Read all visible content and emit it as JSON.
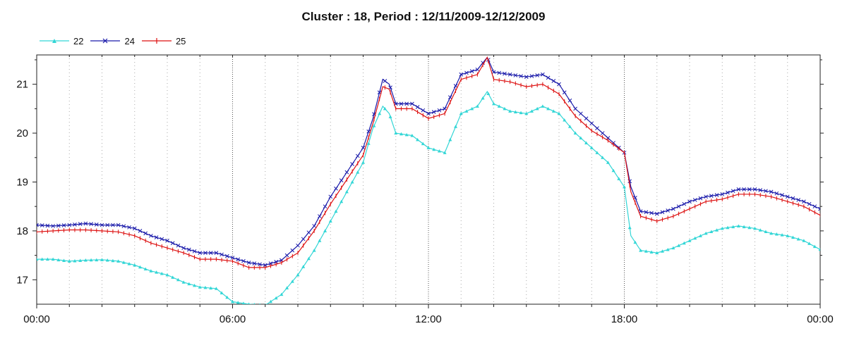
{
  "chart_data": {
    "type": "line",
    "title": "Cluster : 18, Period : 12/11/2009-12/12/2009",
    "xlabel": "",
    "ylabel": "",
    "x_range_hours": [
      0,
      24
    ],
    "x_tick_labels": [
      "00:00",
      "06:00",
      "12:00",
      "18:00",
      "00:00"
    ],
    "y_range": [
      16.5,
      21.6
    ],
    "y_ticks": [
      17,
      18,
      19,
      20,
      21
    ],
    "grid": "dotted vertical lines every hour; bolder dotted lines at 06:00, 12:00, 18:00",
    "legend_position": "top-left",
    "series": [
      {
        "name": "22",
        "color": "#33d6d6",
        "marker": "triangle",
        "points": [
          [
            0,
            17.42
          ],
          [
            0.5,
            17.42
          ],
          [
            1,
            17.38
          ],
          [
            1.5,
            17.4
          ],
          [
            2,
            17.41
          ],
          [
            2.5,
            17.38
          ],
          [
            3,
            17.3
          ],
          [
            3.5,
            17.18
          ],
          [
            4,
            17.1
          ],
          [
            4.5,
            16.95
          ],
          [
            5,
            16.85
          ],
          [
            5.5,
            16.82
          ],
          [
            6,
            16.55
          ],
          [
            6.5,
            16.5
          ],
          [
            7,
            16.48
          ],
          [
            7.5,
            16.7
          ],
          [
            8,
            17.1
          ],
          [
            8.5,
            17.6
          ],
          [
            9,
            18.2
          ],
          [
            9.5,
            18.8
          ],
          [
            10,
            19.4
          ],
          [
            10.3,
            20.1
          ],
          [
            10.6,
            20.55
          ],
          [
            10.8,
            20.4
          ],
          [
            11,
            20.0
          ],
          [
            11.5,
            19.95
          ],
          [
            12,
            19.7
          ],
          [
            12.5,
            19.6
          ],
          [
            13,
            20.4
          ],
          [
            13.5,
            20.55
          ],
          [
            13.8,
            20.85
          ],
          [
            14,
            20.6
          ],
          [
            14.5,
            20.45
          ],
          [
            15,
            20.4
          ],
          [
            15.5,
            20.55
          ],
          [
            16,
            20.4
          ],
          [
            16.5,
            20.0
          ],
          [
            17,
            19.7
          ],
          [
            17.5,
            19.4
          ],
          [
            18,
            18.9
          ],
          [
            18.2,
            17.9
          ],
          [
            18.5,
            17.6
          ],
          [
            19,
            17.55
          ],
          [
            19.5,
            17.65
          ],
          [
            20,
            17.8
          ],
          [
            20.5,
            17.95
          ],
          [
            21,
            18.05
          ],
          [
            21.5,
            18.1
          ],
          [
            22,
            18.05
          ],
          [
            22.5,
            17.95
          ],
          [
            23,
            17.9
          ],
          [
            23.5,
            17.8
          ],
          [
            24,
            17.62
          ]
        ]
      },
      {
        "name": "24",
        "color": "#1a1aaa",
        "marker": "x",
        "points": [
          [
            0,
            18.12
          ],
          [
            0.5,
            18.1
          ],
          [
            1,
            18.12
          ],
          [
            1.5,
            18.15
          ],
          [
            2,
            18.12
          ],
          [
            2.5,
            18.12
          ],
          [
            3,
            18.05
          ],
          [
            3.5,
            17.9
          ],
          [
            4,
            17.8
          ],
          [
            4.5,
            17.65
          ],
          [
            5,
            17.55
          ],
          [
            5.5,
            17.55
          ],
          [
            6,
            17.45
          ],
          [
            6.5,
            17.35
          ],
          [
            7,
            17.3
          ],
          [
            7.5,
            17.4
          ],
          [
            8,
            17.7
          ],
          [
            8.5,
            18.1
          ],
          [
            9,
            18.7
          ],
          [
            9.5,
            19.2
          ],
          [
            10,
            19.7
          ],
          [
            10.3,
            20.3
          ],
          [
            10.6,
            21.1
          ],
          [
            10.8,
            21.0
          ],
          [
            11,
            20.6
          ],
          [
            11.5,
            20.6
          ],
          [
            12,
            20.4
          ],
          [
            12.5,
            20.5
          ],
          [
            13,
            21.2
          ],
          [
            13.5,
            21.3
          ],
          [
            13.8,
            21.55
          ],
          [
            14,
            21.25
          ],
          [
            14.5,
            21.2
          ],
          [
            15,
            21.15
          ],
          [
            15.5,
            21.2
          ],
          [
            16,
            21.0
          ],
          [
            16.5,
            20.5
          ],
          [
            17,
            20.2
          ],
          [
            17.5,
            19.9
          ],
          [
            18,
            19.6
          ],
          [
            18.2,
            18.9
          ],
          [
            18.5,
            18.4
          ],
          [
            19,
            18.35
          ],
          [
            19.5,
            18.45
          ],
          [
            20,
            18.6
          ],
          [
            20.5,
            18.7
          ],
          [
            21,
            18.75
          ],
          [
            21.5,
            18.85
          ],
          [
            22,
            18.85
          ],
          [
            22.5,
            18.8
          ],
          [
            23,
            18.7
          ],
          [
            23.5,
            18.6
          ],
          [
            24,
            18.45
          ]
        ]
      },
      {
        "name": "25",
        "color": "#dd1111",
        "marker": "plus",
        "points": [
          [
            0,
            17.98
          ],
          [
            0.5,
            18.0
          ],
          [
            1,
            18.02
          ],
          [
            1.5,
            18.02
          ],
          [
            2,
            18.0
          ],
          [
            2.5,
            17.98
          ],
          [
            3,
            17.9
          ],
          [
            3.5,
            17.75
          ],
          [
            4,
            17.65
          ],
          [
            4.5,
            17.55
          ],
          [
            5,
            17.42
          ],
          [
            5.5,
            17.42
          ],
          [
            6,
            17.38
          ],
          [
            6.5,
            17.25
          ],
          [
            7,
            17.25
          ],
          [
            7.5,
            17.35
          ],
          [
            8,
            17.55
          ],
          [
            8.5,
            18.0
          ],
          [
            9,
            18.55
          ],
          [
            9.5,
            19.05
          ],
          [
            10,
            19.55
          ],
          [
            10.3,
            20.2
          ],
          [
            10.6,
            20.95
          ],
          [
            10.8,
            20.9
          ],
          [
            11,
            20.5
          ],
          [
            11.5,
            20.5
          ],
          [
            12,
            20.3
          ],
          [
            12.5,
            20.4
          ],
          [
            13,
            21.1
          ],
          [
            13.5,
            21.2
          ],
          [
            13.8,
            21.55
          ],
          [
            14,
            21.1
          ],
          [
            14.5,
            21.05
          ],
          [
            15,
            20.95
          ],
          [
            15.5,
            21.0
          ],
          [
            16,
            20.8
          ],
          [
            16.5,
            20.35
          ],
          [
            17,
            20.05
          ],
          [
            17.5,
            19.85
          ],
          [
            18,
            19.6
          ],
          [
            18.2,
            18.8
          ],
          [
            18.5,
            18.3
          ],
          [
            19,
            18.2
          ],
          [
            19.5,
            18.3
          ],
          [
            20,
            18.45
          ],
          [
            20.5,
            18.6
          ],
          [
            21,
            18.65
          ],
          [
            21.5,
            18.75
          ],
          [
            22,
            18.75
          ],
          [
            22.5,
            18.7
          ],
          [
            23,
            18.6
          ],
          [
            23.5,
            18.5
          ],
          [
            24,
            18.32
          ]
        ]
      }
    ]
  }
}
